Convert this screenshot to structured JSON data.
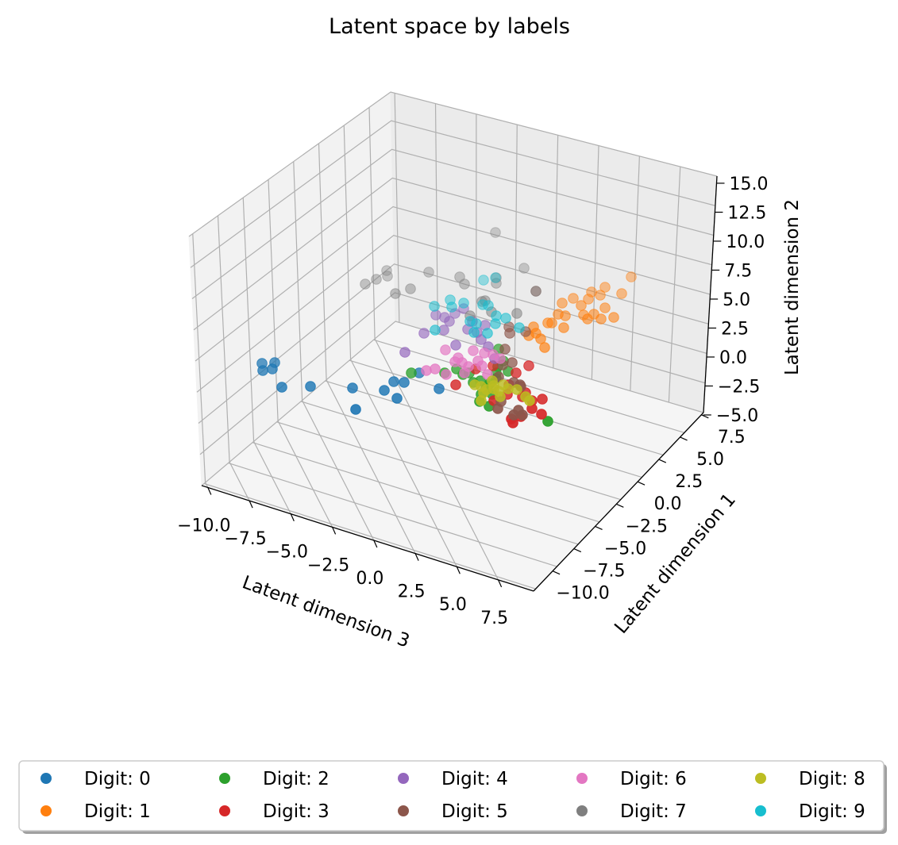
{
  "chart_data": {
    "type": "scatter",
    "title": "Latent space by labels",
    "xlabel": "Latent dimension 3",
    "ylabel": "Latent dimension 1",
    "zlabel": "Latent dimension 2",
    "x_ticks": [
      "−10.0",
      "−7.5",
      "−5.0",
      "−2.5",
      "0.0",
      "2.5",
      "5.0",
      "7.5"
    ],
    "y_ticks": [
      "7.5",
      "5.0",
      "2.5",
      "0.0",
      "−2.5",
      "−5.0",
      "−7.5",
      "−10.0"
    ],
    "z_ticks": [
      "15.0",
      "12.5",
      "10.0",
      "7.5",
      "5.0",
      "2.5",
      "0.0",
      "−2.5",
      "−5.0"
    ],
    "grid": true,
    "legend_position": "bottom-center",
    "legend_columns": 5,
    "series": [
      {
        "name": "Digit: 0",
        "color": "#1f77b4",
        "points": [
          [
            330,
            458
          ],
          [
            346,
            457
          ],
          [
            331,
            467
          ],
          [
            343,
            465
          ],
          [
            355,
            488
          ],
          [
            391,
            487
          ],
          [
            444,
            489
          ],
          [
            484,
            492
          ],
          [
            500,
            502
          ],
          [
            509,
            482
          ],
          [
            496,
            481
          ],
          [
            553,
            490
          ],
          [
            448,
            516
          ],
          [
            528,
            470
          ]
        ]
      },
      {
        "name": "Digit: 1",
        "color": "#ff7f0e",
        "points": [
          [
            795,
            349
          ],
          [
            762,
            362
          ],
          [
            745,
            368
          ],
          [
            756,
            372
          ],
          [
            722,
            376
          ],
          [
            741,
            377
          ],
          [
            783,
            370
          ],
          [
            708,
            382
          ],
          [
            732,
            385
          ],
          [
            762,
            388
          ],
          [
            748,
            396
          ],
          [
            735,
            397
          ],
          [
            712,
            398
          ],
          [
            703,
            396
          ],
          [
            690,
            407
          ],
          [
            695,
            407
          ],
          [
            740,
            402
          ],
          [
            757,
            402
          ],
          [
            773,
            400
          ],
          [
            672,
            412
          ],
          [
            666,
            423
          ],
          [
            681,
            427
          ],
          [
            686,
            438
          ],
          [
            710,
            413
          ],
          [
            675,
            420
          ]
        ]
      },
      {
        "name": "Digit: 2",
        "color": "#2ca02c",
        "points": [
          [
            518,
            470
          ],
          [
            560,
            470
          ],
          [
            575,
            465
          ],
          [
            583,
            472
          ],
          [
            596,
            482
          ],
          [
            605,
            480
          ],
          [
            612,
            490
          ],
          [
            606,
            497
          ],
          [
            617,
            483
          ],
          [
            625,
            477
          ],
          [
            634,
            455
          ],
          [
            628,
            440
          ],
          [
            627,
            462
          ],
          [
            640,
            468
          ],
          [
            614,
            487
          ],
          [
            604,
            506
          ],
          [
            620,
            497
          ],
          [
            690,
            531
          ],
          [
            616,
            512
          ],
          [
            625,
            470
          ],
          [
            591,
            470
          ]
        ]
      },
      {
        "name": "Digit: 3",
        "color": "#d62728",
        "points": [
          [
            574,
            485
          ],
          [
            599,
            465
          ],
          [
            621,
            461
          ],
          [
            666,
            461
          ],
          [
            650,
            470
          ],
          [
            641,
            485
          ],
          [
            639,
            497
          ],
          [
            658,
            500
          ],
          [
            670,
            505
          ],
          [
            683,
            503
          ],
          [
            682,
            522
          ],
          [
            670,
            515
          ],
          [
            644,
            528
          ],
          [
            646,
            533
          ],
          [
            656,
            525
          ],
          [
            622,
            505
          ],
          [
            662,
            495
          ]
        ]
      },
      {
        "name": "Digit: 4",
        "color": "#9467bd",
        "points": [
          [
            510,
            444
          ],
          [
            534,
            420
          ],
          [
            549,
            397
          ],
          [
            559,
            416
          ],
          [
            566,
            405
          ],
          [
            573,
            395
          ],
          [
            584,
            389
          ],
          [
            611,
            410
          ],
          [
            589,
            415
          ],
          [
            601,
            419
          ],
          [
            606,
            428
          ],
          [
            615,
            437
          ],
          [
            623,
            452
          ],
          [
            574,
            435
          ],
          [
            560,
            400
          ],
          [
            595,
            405
          ]
        ]
      },
      {
        "name": "Digit: 5",
        "color": "#8c564b",
        "points": [
          [
            675,
            367
          ],
          [
            662,
            418
          ],
          [
            642,
            420
          ],
          [
            636,
            440
          ],
          [
            633,
            460
          ],
          [
            645,
            457
          ],
          [
            628,
            475
          ],
          [
            647,
            482
          ],
          [
            655,
            485
          ],
          [
            653,
            517
          ],
          [
            647,
            523
          ],
          [
            627,
            515
          ],
          [
            658,
            523
          ],
          [
            631,
            506
          ],
          [
            656,
            487
          ],
          [
            641,
            412
          ]
        ]
      },
      {
        "name": "Digit: 6",
        "color": "#e377c2",
        "points": [
          [
            537,
            467
          ],
          [
            548,
            465
          ],
          [
            561,
            441
          ],
          [
            577,
            451
          ],
          [
            590,
            462
          ],
          [
            596,
            442
          ],
          [
            607,
            461
          ],
          [
            582,
            457
          ],
          [
            585,
            470
          ],
          [
            602,
            455
          ],
          [
            610,
            445
          ],
          [
            621,
            447
          ],
          [
            630,
            452
          ],
          [
            614,
            472
          ],
          [
            573,
            456
          ],
          [
            562,
            472
          ]
        ]
      },
      {
        "name": "Digit: 7",
        "color": "#7f7f7f",
        "points": [
          [
            624,
            293
          ],
          [
            660,
            338
          ],
          [
            625,
            357
          ],
          [
            607,
            380
          ],
          [
            619,
            393
          ],
          [
            651,
            395
          ],
          [
            675,
            367
          ],
          [
            487,
            341
          ],
          [
            460,
            358
          ],
          [
            474,
            352
          ],
          [
            498,
            370
          ],
          [
            517,
            364
          ],
          [
            540,
            343
          ],
          [
            579,
            349
          ],
          [
            585,
            358
          ],
          [
            625,
            350
          ],
          [
            592,
            398
          ],
          [
            611,
            379
          ],
          [
            488,
            348
          ]
        ]
      },
      {
        "name": "Digit: 8",
        "color": "#bcbd22",
        "points": [
          [
            598,
            485
          ],
          [
            609,
            495
          ],
          [
            622,
            486
          ],
          [
            628,
            493
          ],
          [
            634,
            485
          ],
          [
            640,
            490
          ],
          [
            622,
            490
          ],
          [
            606,
            505
          ],
          [
            651,
            491
          ],
          [
            662,
            500
          ],
          [
            667,
            505
          ],
          [
            630,
            500
          ],
          [
            613,
            491
          ],
          [
            620,
            480
          ],
          [
            606,
            487
          ]
        ]
      },
      {
        "name": "Digit: 9",
        "color": "#17becf",
        "points": [
          [
            609,
            353
          ],
          [
            624,
            350
          ],
          [
            567,
            378
          ],
          [
            547,
            386
          ],
          [
            569,
            387
          ],
          [
            584,
            382
          ],
          [
            592,
            405
          ],
          [
            608,
            384
          ],
          [
            615,
            385
          ],
          [
            600,
            408
          ],
          [
            625,
            398
          ],
          [
            637,
            401
          ],
          [
            654,
            413
          ],
          [
            614,
            420
          ],
          [
            548,
            416
          ],
          [
            597,
            419
          ],
          [
            624,
            408
          ]
        ]
      }
    ]
  }
}
